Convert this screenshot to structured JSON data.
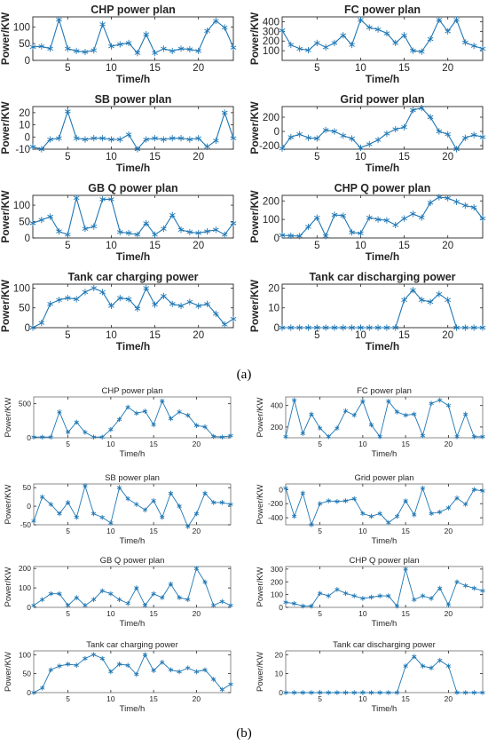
{
  "panel_labels": [
    "(a)",
    "(b)"
  ],
  "series_color": "#1f77b4",
  "chart_data": [
    {
      "id": "a1",
      "group": "a",
      "type": "line",
      "title": "CHP power plan",
      "xlabel": "Time/h",
      "ylabel": "Power/KW",
      "xlim": [
        1,
        24
      ],
      "ylim": [
        0,
        130
      ],
      "xticks": [
        5,
        10,
        15,
        20
      ],
      "yticks": [
        0,
        50,
        100
      ],
      "x": [
        1,
        2,
        3,
        4,
        5,
        6,
        7,
        8,
        9,
        10,
        11,
        12,
        13,
        14,
        15,
        16,
        17,
        18,
        19,
        20,
        21,
        22,
        23,
        24
      ],
      "values": [
        40,
        42,
        35,
        122,
        35,
        28,
        25,
        30,
        108,
        42,
        48,
        52,
        22,
        78,
        22,
        35,
        28,
        35,
        33,
        28,
        88,
        118,
        98,
        38
      ]
    },
    {
      "id": "a2",
      "group": "a",
      "type": "line",
      "title": "FC power plan",
      "xlabel": "Time/h",
      "ylabel": "Power/KW",
      "xlim": [
        1,
        24
      ],
      "ylim": [
        0,
        450
      ],
      "xticks": [
        5,
        10,
        15,
        20
      ],
      "yticks": [
        100,
        200,
        300,
        400
      ],
      "x": [
        1,
        2,
        3,
        4,
        5,
        6,
        7,
        8,
        9,
        10,
        11,
        12,
        13,
        14,
        15,
        16,
        17,
        18,
        19,
        20,
        21,
        22,
        23,
        24
      ],
      "values": [
        310,
        160,
        120,
        105,
        180,
        135,
        180,
        260,
        160,
        420,
        340,
        320,
        280,
        180,
        260,
        100,
        90,
        220,
        420,
        300,
        420,
        185,
        150,
        120
      ]
    },
    {
      "id": "a3",
      "group": "a",
      "type": "line",
      "title": "SB power plan",
      "xlabel": "Time/h",
      "ylabel": "Power/KW",
      "xlim": [
        1,
        24
      ],
      "ylim": [
        -10,
        25
      ],
      "xticks": [
        5,
        10,
        15,
        20
      ],
      "yticks": [
        -10,
        0,
        10,
        20
      ],
      "x": [
        1,
        2,
        3,
        4,
        5,
        6,
        7,
        8,
        9,
        10,
        11,
        12,
        13,
        14,
        15,
        16,
        17,
        18,
        19,
        20,
        21,
        22,
        23,
        24
      ],
      "values": [
        -8,
        -10,
        -2,
        -1,
        21,
        -1,
        -2,
        -1,
        -1,
        -2,
        -2,
        2,
        -10,
        -2,
        -1,
        -2,
        -1,
        -1,
        -2,
        -1,
        -8,
        -3,
        20,
        -1
      ]
    },
    {
      "id": "a4",
      "group": "a",
      "type": "line",
      "title": "Grid power plan",
      "xlabel": "Time/h",
      "ylabel": "Power/KW",
      "xlim": [
        1,
        24
      ],
      "ylim": [
        -250,
        350
      ],
      "xticks": [
        5,
        10,
        15,
        20
      ],
      "yticks": [
        -200,
        0,
        200
      ],
      "x": [
        1,
        2,
        3,
        4,
        5,
        6,
        7,
        8,
        9,
        10,
        11,
        12,
        13,
        14,
        15,
        16,
        17,
        18,
        19,
        20,
        21,
        22,
        23,
        24
      ],
      "values": [
        -240,
        -80,
        -40,
        -90,
        -100,
        20,
        0,
        -60,
        -100,
        -230,
        -180,
        -120,
        -30,
        30,
        60,
        300,
        330,
        200,
        0,
        -40,
        -250,
        -90,
        -50,
        -80
      ]
    },
    {
      "id": "a5",
      "group": "a",
      "type": "line",
      "title": "GB Q power plan",
      "xlabel": "Time/h",
      "ylabel": "Power/KW",
      "xlim": [
        1,
        24
      ],
      "ylim": [
        0,
        130
      ],
      "xticks": [
        5,
        10,
        15,
        20
      ],
      "yticks": [
        0,
        50,
        100
      ],
      "x": [
        1,
        2,
        3,
        4,
        5,
        6,
        7,
        8,
        9,
        10,
        11,
        12,
        13,
        14,
        15,
        16,
        17,
        18,
        19,
        20,
        21,
        22,
        23,
        24
      ],
      "values": [
        45,
        55,
        65,
        20,
        10,
        122,
        28,
        35,
        118,
        118,
        18,
        15,
        10,
        45,
        10,
        28,
        70,
        25,
        18,
        15,
        20,
        25,
        10,
        45
      ]
    },
    {
      "id": "a6",
      "group": "a",
      "type": "line",
      "title": "CHP Q power plan",
      "xlabel": "Time/h",
      "ylabel": "Power/KW",
      "xlim": [
        1,
        24
      ],
      "ylim": [
        0,
        230
      ],
      "xticks": [
        5,
        10,
        15,
        20
      ],
      "yticks": [
        0,
        100,
        200
      ],
      "x": [
        1,
        2,
        3,
        4,
        5,
        6,
        7,
        8,
        9,
        10,
        11,
        12,
        13,
        14,
        15,
        16,
        17,
        18,
        19,
        20,
        21,
        22,
        23,
        24
      ],
      "values": [
        15,
        12,
        10,
        60,
        110,
        10,
        125,
        120,
        30,
        25,
        110,
        100,
        95,
        70,
        105,
        130,
        110,
        190,
        220,
        215,
        195,
        175,
        165,
        105
      ]
    },
    {
      "id": "a7",
      "group": "a",
      "type": "line",
      "title": "Tank car charging power",
      "xlabel": "Time/h",
      "ylabel": "Power/KW",
      "xlim": [
        1,
        24
      ],
      "ylim": [
        0,
        110
      ],
      "xticks": [
        5,
        10,
        15,
        20
      ],
      "yticks": [
        0,
        50,
        100
      ],
      "x": [
        1,
        2,
        3,
        4,
        5,
        6,
        7,
        8,
        9,
        10,
        11,
        12,
        13,
        14,
        15,
        16,
        17,
        18,
        19,
        20,
        21,
        22,
        23,
        24
      ],
      "values": [
        0,
        12,
        60,
        70,
        75,
        72,
        90,
        100,
        90,
        55,
        75,
        72,
        48,
        100,
        58,
        80,
        60,
        55,
        65,
        55,
        60,
        35,
        8,
        22
      ]
    },
    {
      "id": "a8",
      "group": "a",
      "type": "line",
      "title": "Tank car discharging power",
      "xlabel": "Time/h",
      "ylabel": "Power/KW",
      "xlim": [
        1,
        24
      ],
      "ylim": [
        0,
        22
      ],
      "xticks": [
        5,
        10,
        15,
        20
      ],
      "yticks": [
        0,
        10,
        20
      ],
      "x": [
        1,
        2,
        3,
        4,
        5,
        6,
        7,
        8,
        9,
        10,
        11,
        12,
        13,
        14,
        15,
        16,
        17,
        18,
        19,
        20,
        21,
        22,
        23,
        24
      ],
      "values": [
        0,
        0,
        0,
        0,
        0,
        0,
        0,
        0,
        0,
        0,
        0,
        0,
        0,
        0,
        14,
        19,
        14,
        13,
        17,
        14,
        0,
        0,
        0,
        0
      ]
    },
    {
      "id": "b1",
      "group": "b",
      "type": "line",
      "title": "CHP power plan",
      "xlabel": "Time/h",
      "ylabel": "Power/KW",
      "xlim": [
        1,
        24
      ],
      "ylim": [
        0,
        600
      ],
      "xticks": [
        5,
        10,
        15,
        20
      ],
      "yticks": [
        0,
        500
      ],
      "x": [
        1,
        2,
        3,
        4,
        5,
        6,
        7,
        8,
        9,
        10,
        11,
        12,
        13,
        14,
        15,
        16,
        17,
        18,
        19,
        20,
        21,
        22,
        23,
        24
      ],
      "values": [
        10,
        10,
        10,
        380,
        80,
        230,
        80,
        10,
        10,
        120,
        270,
        450,
        360,
        390,
        190,
        540,
        280,
        380,
        330,
        180,
        160,
        20,
        10,
        30
      ]
    },
    {
      "id": "b2",
      "group": "b",
      "type": "line",
      "title": "FC power plan",
      "xlabel": "Time/h",
      "ylabel": "Power/KW",
      "xlim": [
        1,
        24
      ],
      "ylim": [
        100,
        480
      ],
      "xticks": [
        5,
        10,
        15,
        20
      ],
      "yticks": [
        200,
        400
      ],
      "x": [
        1,
        2,
        3,
        4,
        5,
        6,
        7,
        8,
        9,
        10,
        11,
        12,
        13,
        14,
        15,
        16,
        17,
        18,
        19,
        20,
        21,
        22,
        23,
        24
      ],
      "values": [
        110,
        450,
        140,
        320,
        190,
        110,
        190,
        350,
        310,
        440,
        220,
        110,
        440,
        340,
        310,
        320,
        120,
        420,
        450,
        400,
        110,
        320,
        110,
        110
      ]
    },
    {
      "id": "b3",
      "group": "b",
      "type": "line",
      "title": "SB power plan",
      "xlabel": "Time/h",
      "ylabel": "Power/KW",
      "xlim": [
        1,
        24
      ],
      "ylim": [
        -50,
        60
      ],
      "xticks": [
        5,
        10,
        15,
        20
      ],
      "yticks": [
        -50,
        0,
        50
      ],
      "x": [
        1,
        2,
        3,
        4,
        5,
        6,
        7,
        8,
        9,
        10,
        11,
        12,
        13,
        14,
        15,
        16,
        17,
        18,
        19,
        20,
        21,
        22,
        23,
        24
      ],
      "values": [
        -40,
        25,
        5,
        -20,
        10,
        -30,
        55,
        -20,
        -30,
        -45,
        50,
        20,
        5,
        -10,
        15,
        -30,
        35,
        0,
        -55,
        -20,
        35,
        10,
        10,
        5
      ]
    },
    {
      "id": "b4",
      "group": "b",
      "type": "line",
      "title": "Grid power plan",
      "xlabel": "Time/h",
      "ylabel": "Power/KW",
      "xlim": [
        1,
        24
      ],
      "ylim": [
        -500,
        80
      ],
      "xticks": [
        5,
        10,
        15,
        20
      ],
      "yticks": [
        -400,
        -200,
        0
      ],
      "x": [
        1,
        2,
        3,
        4,
        5,
        6,
        7,
        8,
        9,
        10,
        11,
        12,
        13,
        14,
        15,
        16,
        17,
        18,
        19,
        20,
        21,
        22,
        23,
        24
      ],
      "values": [
        20,
        -380,
        -50,
        -500,
        -200,
        -160,
        -170,
        -160,
        -130,
        -340,
        -380,
        -340,
        -470,
        -380,
        -160,
        -360,
        20,
        -340,
        -320,
        -260,
        -120,
        -210,
        0,
        -20
      ]
    },
    {
      "id": "b5",
      "group": "b",
      "type": "line",
      "title": "GB Q power plan",
      "xlabel": "Time/h",
      "ylabel": "Power/KW",
      "xlim": [
        1,
        24
      ],
      "ylim": [
        0,
        210
      ],
      "xticks": [
        5,
        10,
        15,
        20
      ],
      "yticks": [
        0,
        100,
        200
      ],
      "x": [
        1,
        2,
        3,
        4,
        5,
        6,
        7,
        8,
        9,
        10,
        11,
        12,
        13,
        14,
        15,
        16,
        17,
        18,
        19,
        20,
        21,
        22,
        23,
        24
      ],
      "values": [
        10,
        40,
        70,
        70,
        10,
        50,
        10,
        40,
        85,
        70,
        40,
        20,
        100,
        10,
        70,
        50,
        120,
        50,
        40,
        200,
        130,
        10,
        30,
        10
      ]
    },
    {
      "id": "b6",
      "group": "b",
      "type": "line",
      "title": "CHP Q power plan",
      "xlabel": "Time/h",
      "ylabel": "Power/KW",
      "xlim": [
        1,
        24
      ],
      "ylim": [
        0,
        320
      ],
      "xticks": [
        5,
        10,
        15,
        20
      ],
      "yticks": [
        0,
        100,
        200,
        300
      ],
      "x": [
        1,
        2,
        3,
        4,
        5,
        6,
        7,
        8,
        9,
        10,
        11,
        12,
        13,
        14,
        15,
        16,
        17,
        18,
        19,
        20,
        21,
        22,
        23,
        24
      ],
      "values": [
        40,
        30,
        10,
        10,
        110,
        90,
        140,
        110,
        90,
        70,
        80,
        90,
        90,
        10,
        300,
        60,
        90,
        70,
        150,
        20,
        200,
        170,
        150,
        130
      ]
    },
    {
      "id": "b7",
      "group": "b",
      "type": "line",
      "title": "Tank car charging power",
      "xlabel": "Time/h",
      "ylabel": "Power/KW",
      "xlim": [
        1,
        24
      ],
      "ylim": [
        0,
        110
      ],
      "xticks": [
        5,
        10,
        15,
        20
      ],
      "yticks": [
        0,
        50,
        100
      ],
      "x": [
        1,
        2,
        3,
        4,
        5,
        6,
        7,
        8,
        9,
        10,
        11,
        12,
        13,
        14,
        15,
        16,
        17,
        18,
        19,
        20,
        21,
        22,
        23,
        24
      ],
      "values": [
        0,
        12,
        60,
        70,
        75,
        72,
        90,
        100,
        90,
        55,
        75,
        72,
        48,
        100,
        58,
        80,
        60,
        55,
        65,
        55,
        60,
        35,
        8,
        22
      ]
    },
    {
      "id": "b8",
      "group": "b",
      "type": "line",
      "title": "Tank car discharging power",
      "xlabel": "Time/h",
      "ylabel": "Power/KW",
      "xlim": [
        1,
        24
      ],
      "ylim": [
        0,
        22
      ],
      "xticks": [
        5,
        10,
        15,
        20
      ],
      "yticks": [
        0,
        10,
        20
      ],
      "x": [
        1,
        2,
        3,
        4,
        5,
        6,
        7,
        8,
        9,
        10,
        11,
        12,
        13,
        14,
        15,
        16,
        17,
        18,
        19,
        20,
        21,
        22,
        23,
        24
      ],
      "values": [
        0,
        0,
        0,
        0,
        0,
        0,
        0,
        0,
        0,
        0,
        0,
        0,
        0,
        0,
        14,
        19,
        14,
        13,
        17,
        14,
        0,
        0,
        0,
        0
      ]
    }
  ]
}
